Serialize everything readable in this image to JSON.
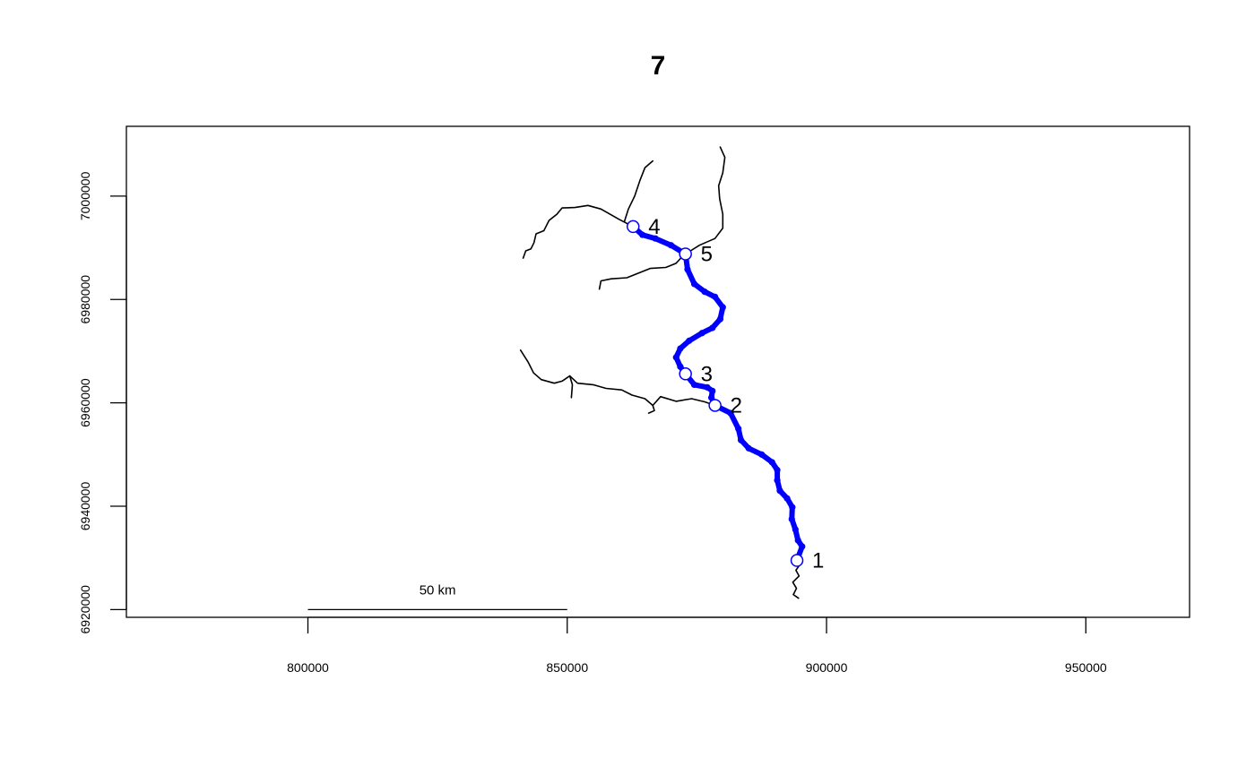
{
  "chart_data": {
    "type": "map",
    "title": "7",
    "xlim": [
      765000,
      970000
    ],
    "ylim": [
      6918500,
      7013500
    ],
    "x_ticks": [
      800000,
      850000,
      900000,
      950000
    ],
    "y_ticks": [
      6920000,
      6940000,
      6960000,
      6980000,
      7000000
    ],
    "x_tick_labels": [
      "800000",
      "850000",
      "900000",
      "950000"
    ],
    "y_tick_labels": [
      "6920000",
      "6940000",
      "6960000",
      "6980000",
      "7000000"
    ],
    "scale_bar": {
      "label": "50 km",
      "x_start": 800000,
      "x_end": 850000,
      "y": 6920000
    },
    "colors": {
      "main_path": "#0000ff",
      "network": "#000000",
      "point_fill": "#ffffff",
      "point_stroke": "#0000ff"
    },
    "network": [
      {
        "name": "south-tail",
        "points": [
          [
            894600,
            6922200
          ],
          [
            893600,
            6922900
          ],
          [
            894200,
            6924100
          ],
          [
            893500,
            6925300
          ],
          [
            894700,
            6926500
          ],
          [
            894100,
            6927600
          ],
          [
            894800,
            6928600
          ],
          [
            894300,
            6929500
          ]
        ]
      },
      {
        "name": "west-tributary",
        "points": [
          [
            878500,
            6959500
          ],
          [
            876500,
            6960200
          ],
          [
            874000,
            6960800
          ],
          [
            871000,
            6960300
          ],
          [
            868000,
            6961200
          ],
          [
            866500,
            6959500
          ],
          [
            865000,
            6960800
          ],
          [
            862500,
            6961500
          ],
          [
            860500,
            6962500
          ],
          [
            857500,
            6962800
          ],
          [
            855000,
            6963500
          ],
          [
            852000,
            6963800
          ],
          [
            850500,
            6965200
          ],
          [
            849000,
            6964200
          ],
          [
            847500,
            6963800
          ],
          [
            845000,
            6964500
          ],
          [
            843500,
            6965800
          ],
          [
            842500,
            6967800
          ],
          [
            841000,
            6970200
          ]
        ]
      },
      {
        "name": "west-tributary-spur",
        "points": [
          [
            850500,
            6965200
          ],
          [
            851000,
            6963500
          ],
          [
            850800,
            6961000
          ]
        ]
      },
      {
        "name": "south-west-spur",
        "points": [
          [
            866500,
            6959500
          ],
          [
            866800,
            6958500
          ],
          [
            865700,
            6958000
          ]
        ]
      },
      {
        "name": "northwest-branch",
        "points": [
          [
            862700,
            6994100
          ],
          [
            860000,
            6995500
          ],
          [
            856500,
            6997500
          ],
          [
            854000,
            6998200
          ],
          [
            851500,
            6997800
          ],
          [
            849000,
            6997700
          ],
          [
            848000,
            6996500
          ],
          [
            846500,
            6995300
          ],
          [
            845500,
            6993300
          ],
          [
            844000,
            6992700
          ],
          [
            843600,
            6991000
          ],
          [
            843000,
            6989800
          ],
          [
            842000,
            6989400
          ],
          [
            841500,
            6988000
          ]
        ]
      },
      {
        "name": "north-branch",
        "points": [
          [
            861000,
            6995000
          ],
          [
            861800,
            6997500
          ],
          [
            863000,
            7000000
          ],
          [
            864000,
            7003000
          ],
          [
            865000,
            7005500
          ],
          [
            866500,
            7006800
          ]
        ]
      },
      {
        "name": "west-lower-branch",
        "points": [
          [
            872800,
            6989000
          ],
          [
            871000,
            6987000
          ],
          [
            869000,
            6986200
          ],
          [
            866000,
            6986000
          ],
          [
            863500,
            6985000
          ],
          [
            861500,
            6984200
          ],
          [
            858500,
            6984000
          ],
          [
            856500,
            6983600
          ],
          [
            856200,
            6982000
          ]
        ]
      },
      {
        "name": "northeast-branch",
        "points": [
          [
            872800,
            6988800
          ],
          [
            875500,
            6990500
          ],
          [
            878500,
            6991800
          ],
          [
            880000,
            6993800
          ],
          [
            880000,
            6996500
          ],
          [
            879400,
            6999500
          ],
          [
            879200,
            7002000
          ],
          [
            880000,
            7004500
          ],
          [
            880400,
            7007500
          ],
          [
            879500,
            7009500
          ]
        ]
      }
    ],
    "main_path": [
      [
        894300,
        6929500
      ],
      [
        895300,
        6932200
      ],
      [
        894500,
        6933400
      ],
      [
        894000,
        6935500
      ],
      [
        893300,
        6937500
      ],
      [
        893400,
        6939800
      ],
      [
        892400,
        6941500
      ],
      [
        891000,
        6943000
      ],
      [
        890500,
        6945000
      ],
      [
        890500,
        6947000
      ],
      [
        889500,
        6948500
      ],
      [
        887500,
        6950000
      ],
      [
        885000,
        6951200
      ],
      [
        883500,
        6952800
      ],
      [
        883000,
        6955000
      ],
      [
        881500,
        6958000
      ],
      [
        878500,
        6959500
      ],
      [
        877800,
        6961000
      ],
      [
        878000,
        6962300
      ],
      [
        877000,
        6963000
      ],
      [
        874500,
        6963500
      ],
      [
        872800,
        6965600
      ],
      [
        871800,
        6967000
      ],
      [
        871000,
        6968800
      ],
      [
        871800,
        6970500
      ],
      [
        873500,
        6972000
      ],
      [
        876000,
        6973500
      ],
      [
        878000,
        6974500
      ],
      [
        879500,
        6976200
      ],
      [
        880000,
        6978500
      ],
      [
        878500,
        6980500
      ],
      [
        876500,
        6981500
      ],
      [
        874500,
        6983000
      ],
      [
        873200,
        6985800
      ],
      [
        872800,
        6988800
      ],
      [
        870000,
        6990500
      ],
      [
        867000,
        6991800
      ],
      [
        864500,
        6992500
      ],
      [
        862700,
        6994100
      ]
    ],
    "points": [
      {
        "label": "1",
        "x": 894300,
        "y": 6929500
      },
      {
        "label": "2",
        "x": 878500,
        "y": 6959500
      },
      {
        "label": "3",
        "x": 872800,
        "y": 6965600
      },
      {
        "label": "4",
        "x": 862700,
        "y": 6994100
      },
      {
        "label": "5",
        "x": 872800,
        "y": 6988800
      }
    ]
  }
}
